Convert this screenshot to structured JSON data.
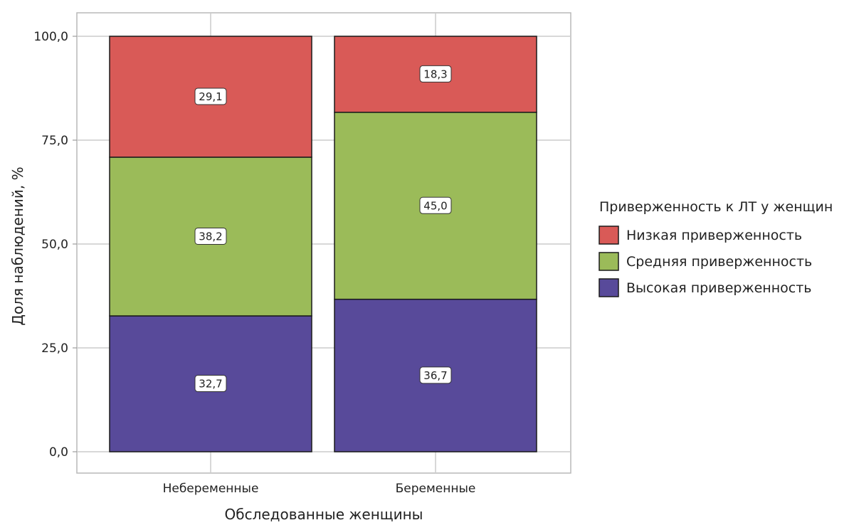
{
  "chart_data": {
    "type": "bar",
    "stacked": true,
    "categories": [
      "Небеременные",
      "Беременные"
    ],
    "series": [
      {
        "name": "Высокая приверженность",
        "values": [
          32.7,
          36.7
        ],
        "labels": [
          "32,7",
          "36,7"
        ],
        "color": "#584a9a"
      },
      {
        "name": "Средняя приверженность",
        "values": [
          38.2,
          45.0
        ],
        "labels": [
          "38,2",
          "45,0"
        ],
        "color": "#9bbb59"
      },
      {
        "name": "Низкая приверженность",
        "values": [
          29.1,
          18.3
        ],
        "labels": [
          "29,1",
          "18,3"
        ],
        "color": "#d95a57"
      }
    ],
    "xlabel": "Обследованные женщины",
    "ylabel": "Доля наблюдений, %",
    "ylim": [
      0,
      100
    ],
    "yticks": [
      0,
      25,
      50,
      75,
      100
    ],
    "ytick_labels": [
      "0,0",
      "25,0",
      "50,0",
      "75,0",
      "100,0"
    ],
    "grid": true,
    "legend": {
      "title": "Приверженность к ЛТ у женщин",
      "position": "right",
      "items": [
        "Низкая приверженность",
        "Средняя приверженность",
        "Высокая приверженность"
      ],
      "colors": [
        "#d95a57",
        "#9bbb59",
        "#584a9a"
      ]
    }
  }
}
